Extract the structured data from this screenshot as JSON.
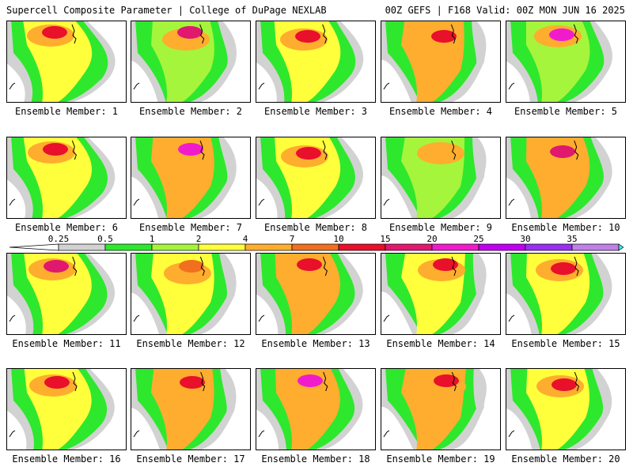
{
  "header": {
    "title": "Supercell Composite Parameter | College of DuPage NEXLAB",
    "run_info": "00Z GEFS | F168 Valid: 00Z MON JUN 16 2025"
  },
  "colors": {
    "levels": [
      "#d2d2d2",
      "#2ee82e",
      "#a5f53c",
      "#ffff3c",
      "#ffad2e",
      "#f07020",
      "#e8102a",
      "#e0186e",
      "#f01ccc",
      "#c000f0",
      "#9930f0",
      "#c080e8",
      "#30f0f0"
    ],
    "border": "#000000"
  },
  "colorbar": {
    "ticks": [
      "0.25",
      "0.5",
      "1",
      "2",
      "4",
      "7",
      "10",
      "15",
      "20",
      "25",
      "30",
      "35"
    ]
  },
  "panels": [
    {
      "label": "Ensemble Member: 1",
      "fill": "#ffff3c",
      "core": "#e8102a"
    },
    {
      "label": "Ensemble Member: 2",
      "fill": "#a5f53c",
      "core": "#e0186e"
    },
    {
      "label": "Ensemble Member: 3",
      "fill": "#ffff3c",
      "core": "#e8102a"
    },
    {
      "label": "Ensemble Member: 4",
      "fill": "#ffad2e",
      "core": "#e8102a"
    },
    {
      "label": "Ensemble Member: 5",
      "fill": "#a5f53c",
      "core": "#f01ccc"
    },
    {
      "label": "Ensemble Member: 6",
      "fill": "#ffff3c",
      "core": "#e8102a"
    },
    {
      "label": "Ensemble Member: 7",
      "fill": "#ffad2e",
      "core": "#f01ccc"
    },
    {
      "label": "Ensemble Member: 8",
      "fill": "#ffff3c",
      "core": "#e8102a"
    },
    {
      "label": "Ensemble Member: 9",
      "fill": "#a5f53c",
      "core": "#ffad2e"
    },
    {
      "label": "Ensemble Member: 10",
      "fill": "#ffad2e",
      "core": "#e0186e"
    },
    {
      "label": "Ensemble Member: 11",
      "fill": "#ffff3c",
      "core": "#e0186e"
    },
    {
      "label": "Ensemble Member: 12",
      "fill": "#ffff3c",
      "core": "#f07020"
    },
    {
      "label": "Ensemble Member: 13",
      "fill": "#ffad2e",
      "core": "#e8102a"
    },
    {
      "label": "Ensemble Member: 14",
      "fill": "#ffff3c",
      "core": "#e8102a"
    },
    {
      "label": "Ensemble Member: 15",
      "fill": "#ffff3c",
      "core": "#e8102a"
    },
    {
      "label": "Ensemble Member: 16",
      "fill": "#ffff3c",
      "core": "#e8102a"
    },
    {
      "label": "Ensemble Member: 17",
      "fill": "#ffad2e",
      "core": "#e8102a"
    },
    {
      "label": "Ensemble Member: 18",
      "fill": "#ffad2e",
      "core": "#f01ccc"
    },
    {
      "label": "Ensemble Member: 19",
      "fill": "#ffad2e",
      "core": "#e8102a"
    },
    {
      "label": "Ensemble Member: 20",
      "fill": "#ffff3c",
      "core": "#e8102a"
    }
  ]
}
